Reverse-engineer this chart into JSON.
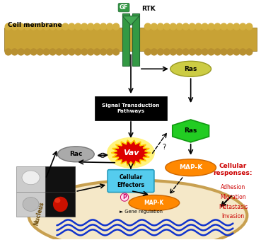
{
  "bg_color": "#ffffff",
  "membrane_color": "#c8a850",
  "cell_membrane_label": "Cell membrane",
  "gf_label": "GF",
  "rtk_label": "RTK",
  "signal_box_label": "Signal Transduction\nPathways",
  "vav_label": "Vav",
  "vav_color": "#dd0000",
  "ras_top_label": "Ras",
  "ras_top_color": "#cccc44",
  "ras_green_label": "Ras",
  "ras_green_color": "#22cc22",
  "rac_label": "Rac",
  "rac_color": "#aaaaaa",
  "mapk_top_label": "MAP-K",
  "mapk_top_color": "#ff8800",
  "cellular_effectors_label": "Cellular\nEffectors",
  "cellular_effectors_color": "#55ccee",
  "mapk_nucleus_label": "MAP-K",
  "mapk_nucleus_color": "#ff8800",
  "p_label": "P",
  "nucleus_color": "#f5e8c8",
  "nucleus_border_color": "#c8a050",
  "dna_color": "#1133cc",
  "gene_regulation_label": "Gene regulation",
  "nucleus_label": "Nucleus",
  "cellular_responses_label": "Cellular\nresponses:",
  "cellular_responses_color": "#cc0000",
  "responses": [
    "Adhesion",
    "Migration",
    "Metastasis",
    "Invasion"
  ],
  "responses_color": "#cc0000"
}
